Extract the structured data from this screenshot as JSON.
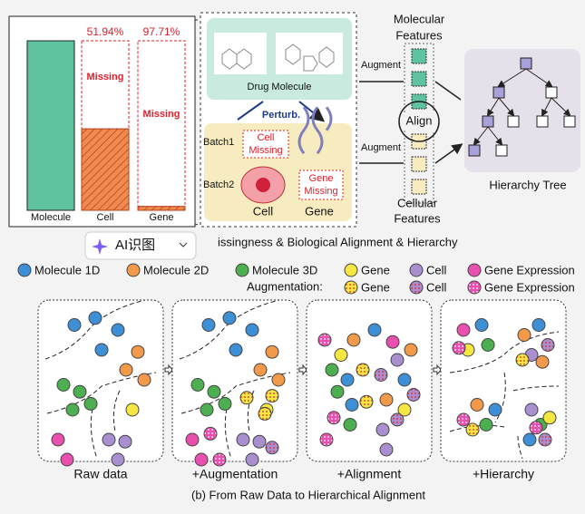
{
  "panel_a": {
    "bars": [
      {
        "label": "Molecule"
      },
      {
        "label": "Cell",
        "missing": 51.94,
        "missing_label": "51.94%"
      },
      {
        "label": "Gene",
        "missing": 97.71,
        "missing_label": "97.71%"
      }
    ],
    "missing_text": "Missing",
    "drug_molecule": "Drug Molecule",
    "perturb": "Perturb.",
    "batch1": "Batch1",
    "batch2": "Batch2",
    "cell_missing": [
      "Cell",
      "Missing"
    ],
    "gene_missing": [
      "Gene",
      "Missing"
    ],
    "cell": "Cell",
    "gene": "Gene",
    "molecular_features": [
      "Molecular",
      "Features"
    ],
    "cellular_features": [
      "Cellular",
      "Features"
    ],
    "augment": "Augment",
    "align": "Align",
    "hierarchy_tree": "Hierarchy Tree",
    "caption": "issingness & Biological Alignment & Hierarchy"
  },
  "overlay_button": "AI识图",
  "panel_b": {
    "legend": [
      "Molecule 1D",
      "Molecule 2D",
      "Molecule 3D",
      "Gene",
      "Cell",
      "Gene Expression"
    ],
    "augmentation_label": "Augmentation:",
    "augmentation_legend": [
      "Gene",
      "Cell",
      "Gene Expression"
    ],
    "stages": [
      "Raw data",
      "+Augmentation",
      "+Alignment",
      "+Hierarchy"
    ],
    "caption": "(b) From Raw Data to Hierarchical Alignment"
  }
}
